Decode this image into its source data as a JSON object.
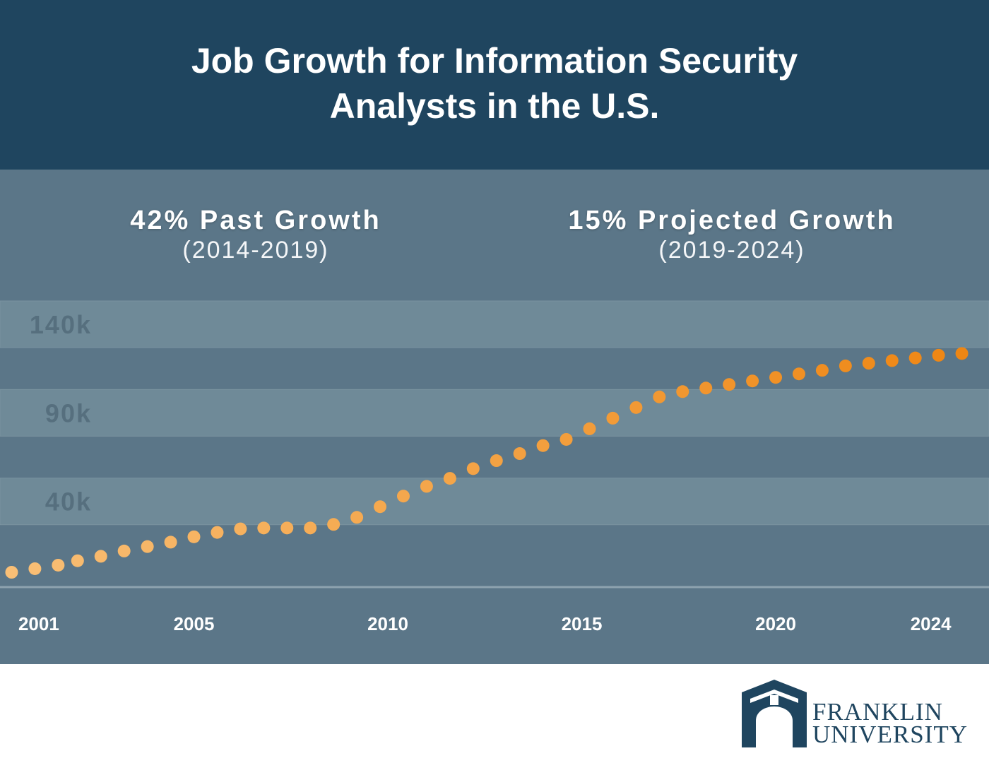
{
  "header": {
    "title": "Job Growth for Information Security Analysts in the U.S."
  },
  "callouts": {
    "past": {
      "headline": "42% Past Growth",
      "period": "(2014-2019)"
    },
    "projected": {
      "headline": "15% Projected Growth",
      "period": "(2019-2024)"
    }
  },
  "colors": {
    "header_bg": "#1f455f",
    "panel_bg": "#5b7688",
    "band_bg": "#6f8a98",
    "dot_light": "#f9bf76",
    "dot_dark": "#ee8613",
    "logo": "#1f455f"
  },
  "logo": {
    "line1": "FRANKLIN",
    "line2": "UNIVERSITY",
    "icon": "franklin-arch-icon"
  },
  "chart_data": {
    "type": "scatter",
    "title": "Job Growth for Information Security Analysts in the U.S.",
    "xlabel": "",
    "ylabel": "",
    "x_ticks": [
      2001,
      2005,
      2010,
      2015,
      2020,
      2024
    ],
    "y_ticks": [
      "40k",
      "90k",
      "140k"
    ],
    "y_tick_values": [
      40000,
      90000,
      140000
    ],
    "xlim": [
      2000,
      2025.5
    ],
    "ylim": [
      0,
      160000
    ],
    "grid": "horizontal bands at each y tick",
    "series": [
      {
        "values": [
          [
            2000.3,
            0
          ],
          [
            2000.9,
            2000
          ],
          [
            2001.5,
            4000
          ],
          [
            2002.0,
            6500
          ],
          [
            2002.6,
            9000
          ],
          [
            2003.2,
            12000
          ],
          [
            2003.8,
            14500
          ],
          [
            2004.4,
            17000
          ],
          [
            2005.0,
            20000
          ],
          [
            2005.6,
            22500
          ],
          [
            2006.2,
            24500
          ],
          [
            2006.8,
            25000
          ],
          [
            2007.4,
            25000
          ],
          [
            2008.0,
            25000
          ],
          [
            2008.6,
            27000
          ],
          [
            2009.2,
            31000
          ],
          [
            2009.8,
            37000
          ],
          [
            2010.4,
            43000
          ],
          [
            2011.0,
            48500
          ],
          [
            2011.6,
            53000
          ],
          [
            2012.2,
            58500
          ],
          [
            2012.8,
            63000
          ],
          [
            2013.4,
            67000
          ],
          [
            2014.0,
            71500
          ],
          [
            2014.6,
            75000
          ],
          [
            2015.2,
            81000
          ],
          [
            2015.8,
            87000
          ],
          [
            2016.4,
            93000
          ],
          [
            2017.0,
            99000
          ],
          [
            2017.6,
            102000
          ],
          [
            2018.2,
            104000
          ],
          [
            2018.8,
            106000
          ],
          [
            2019.4,
            108000
          ],
          [
            2020.0,
            110000
          ],
          [
            2020.6,
            112000
          ],
          [
            2021.2,
            114000
          ],
          [
            2021.8,
            116500
          ],
          [
            2022.4,
            118000
          ],
          [
            2023.0,
            119500
          ],
          [
            2023.6,
            121000
          ],
          [
            2024.2,
            122500
          ],
          [
            2024.8,
            123500
          ]
        ]
      }
    ]
  }
}
